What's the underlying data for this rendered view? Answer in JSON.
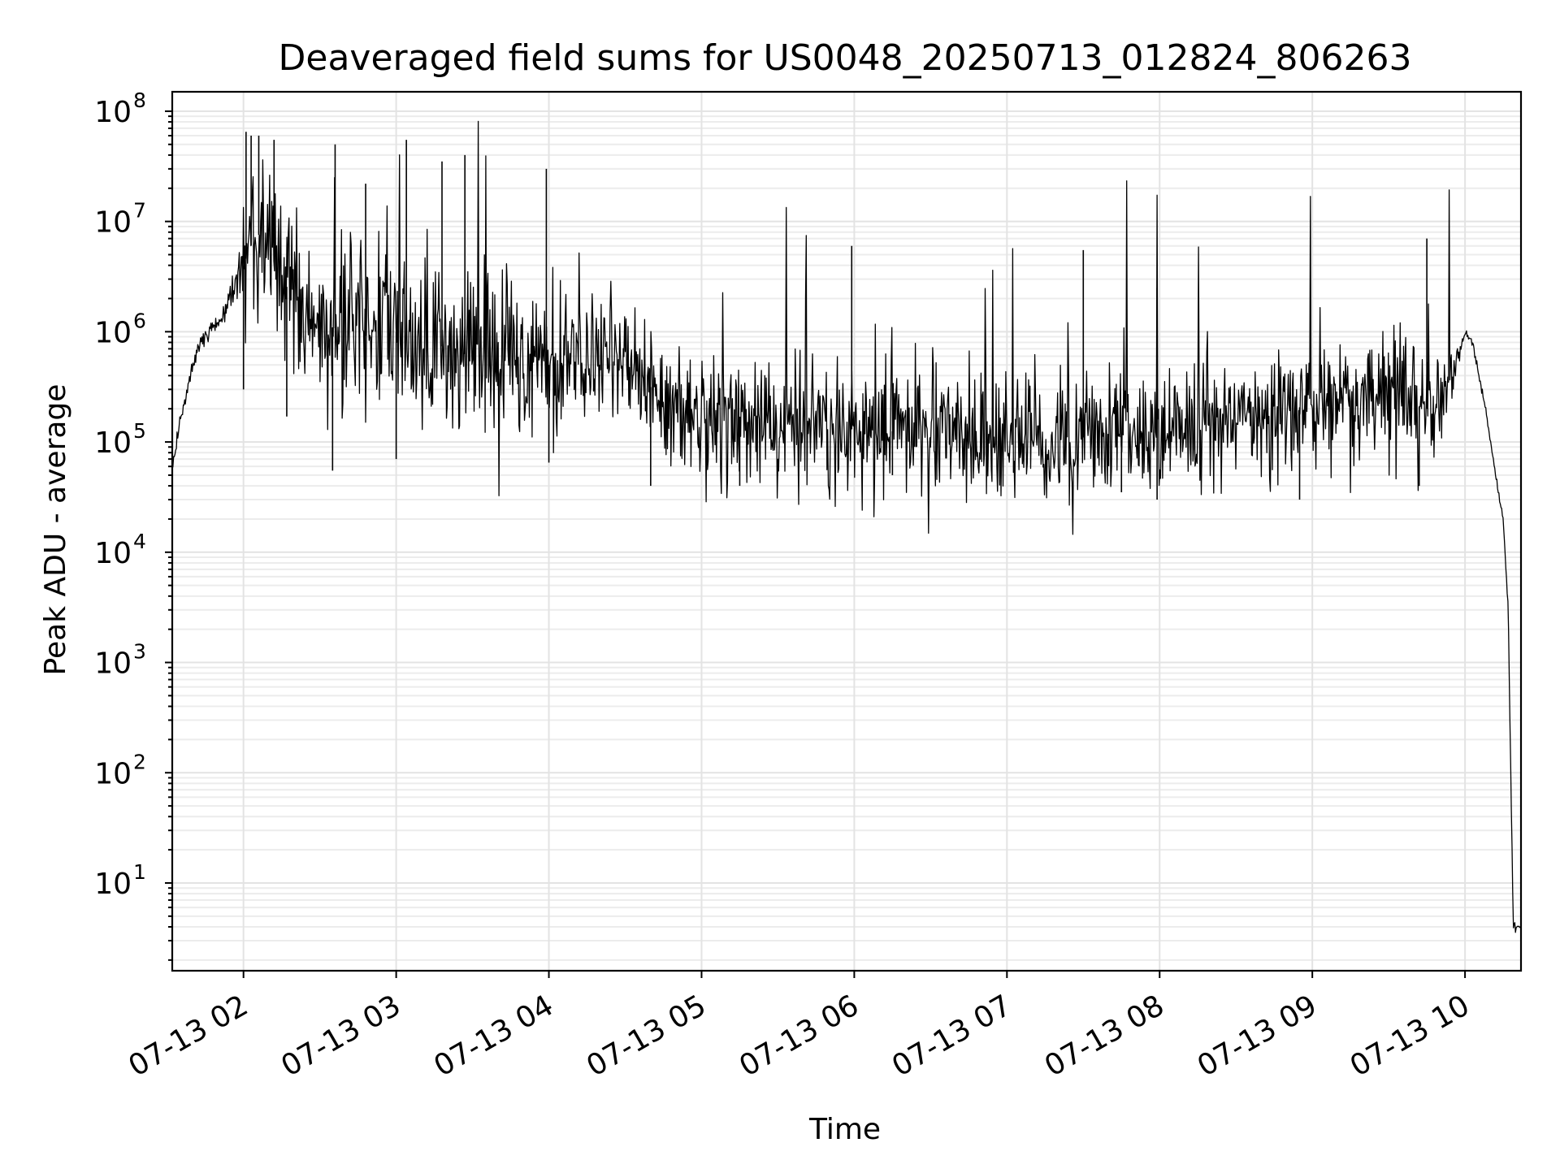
{
  "chart_data": {
    "type": "line",
    "title": "Deaveraged field sums for US0048_20250713_012824_806263",
    "xlabel": "Time",
    "ylabel": "Peak ADU - average",
    "yscale": "log",
    "ylim": [
      1.6,
      150000000
    ],
    "xlim": [
      "2025-07-13T01:32",
      "2025-07-13T10:22"
    ],
    "grid": "major and minor",
    "line_color": "#000000",
    "x_ticks": [
      {
        "label": "07-13 02",
        "value": "2025-07-13T02:00"
      },
      {
        "label": "07-13 03",
        "value": "2025-07-13T03:00"
      },
      {
        "label": "07-13 04",
        "value": "2025-07-13T04:00"
      },
      {
        "label": "07-13 05",
        "value": "2025-07-13T05:00"
      },
      {
        "label": "07-13 06",
        "value": "2025-07-13T06:00"
      },
      {
        "label": "07-13 07",
        "value": "2025-07-13T07:00"
      },
      {
        "label": "07-13 08",
        "value": "2025-07-13T08:00"
      },
      {
        "label": "07-13 09",
        "value": "2025-07-13T09:00"
      },
      {
        "label": "07-13 10",
        "value": "2025-07-13T10:00"
      }
    ],
    "y_ticks": [
      {
        "base": "10",
        "exp": "1",
        "value": 10
      },
      {
        "base": "10",
        "exp": "2",
        "value": 100
      },
      {
        "base": "10",
        "exp": "3",
        "value": 1000
      },
      {
        "base": "10",
        "exp": "4",
        "value": 10000
      },
      {
        "base": "10",
        "exp": "5",
        "value": 100000
      },
      {
        "base": "10",
        "exp": "6",
        "value": 1000000
      },
      {
        "base": "10",
        "exp": "7",
        "value": 10000000
      },
      {
        "base": "10",
        "exp": "8",
        "value": 100000000
      }
    ],
    "series": [
      {
        "x": [
          "2025-07-13T01:32",
          "2025-07-13T01:35",
          "2025-07-13T01:38",
          "2025-07-13T01:42",
          "2025-07-13T01:45",
          "2025-07-13T01:50",
          "2025-07-13T01:55",
          "2025-07-13T02:00",
          "2025-07-13T02:05",
          "2025-07-13T02:10",
          "2025-07-13T02:15",
          "2025-07-13T02:20",
          "2025-07-13T02:25",
          "2025-07-13T02:30",
          "2025-07-13T02:40",
          "2025-07-13T02:50",
          "2025-07-13T03:00",
          "2025-07-13T03:10",
          "2025-07-13T03:20",
          "2025-07-13T03:30",
          "2025-07-13T03:40",
          "2025-07-13T03:50",
          "2025-07-13T04:00",
          "2025-07-13T04:15",
          "2025-07-13T04:30",
          "2025-07-13T04:45",
          "2025-07-13T05:00",
          "2025-07-13T05:30",
          "2025-07-13T06:00",
          "2025-07-13T06:30",
          "2025-07-13T07:00",
          "2025-07-13T07:30",
          "2025-07-13T08:00",
          "2025-07-13T08:30",
          "2025-07-13T09:00",
          "2025-07-13T09:30",
          "2025-07-13T09:45",
          "2025-07-13T09:55",
          "2025-07-13T10:00",
          "2025-07-13T10:03",
          "2025-07-13T10:08",
          "2025-07-13T10:12",
          "2025-07-13T10:15",
          "2025-07-13T10:17",
          "2025-07-13T10:18",
          "2025-07-13T10:19",
          "2025-07-13T10:22"
        ],
        "y": [
          60000,
          150000,
          300000,
          700000,
          900000,
          1200000,
          2000000,
          4000000,
          8000000,
          6000000,
          3000000,
          2000000,
          1500000,
          1200000,
          1000000,
          900000,
          1000000,
          900000,
          700000,
          600000,
          600000,
          550000,
          500000,
          600000,
          500000,
          250000,
          150000,
          140000,
          130000,
          120000,
          110000,
          110000,
          120000,
          150000,
          220000,
          250000,
          200000,
          400000,
          950000,
          800000,
          200000,
          50000,
          20000,
          3000,
          100,
          4,
          4
        ]
      },
      {
        "x": [
          "2025-07-13T02:01",
          "2025-07-13T02:03",
          "2025-07-13T02:06",
          "2025-07-13T02:12",
          "2025-07-13T02:36",
          "2025-07-13T02:48",
          "2025-07-13T03:04",
          "2025-07-13T03:18",
          "2025-07-13T03:27",
          "2025-07-13T03:59",
          "2025-07-13T05:59",
          "2025-07-13T07:30",
          "2025-07-13T07:59",
          "2025-07-13T09:45"
        ],
        "y": [
          65000000,
          60000000,
          60000000,
          55000000,
          50000000,
          22000000,
          55000000,
          35000000,
          40000000,
          30000000,
          6000000,
          5500000,
          2500000,
          7000000
        ]
      },
      {
        "x": [
          "2025-07-13T02:00",
          "2025-07-13T02:17",
          "2025-07-13T02:35",
          "2025-07-13T03:00",
          "2025-07-13T04:00",
          "2025-07-13T04:40",
          "2025-07-13T05:15",
          "2025-07-13T06:15",
          "2025-07-13T07:45",
          "2025-07-13T07:59",
          "2025-07-13T08:55",
          "2025-07-13T09:42"
        ],
        "y": [
          300000,
          170000,
          55000,
          70000,
          65000,
          40000,
          40000,
          50000,
          35000,
          30000,
          30000,
          40000
        ]
      }
    ]
  }
}
